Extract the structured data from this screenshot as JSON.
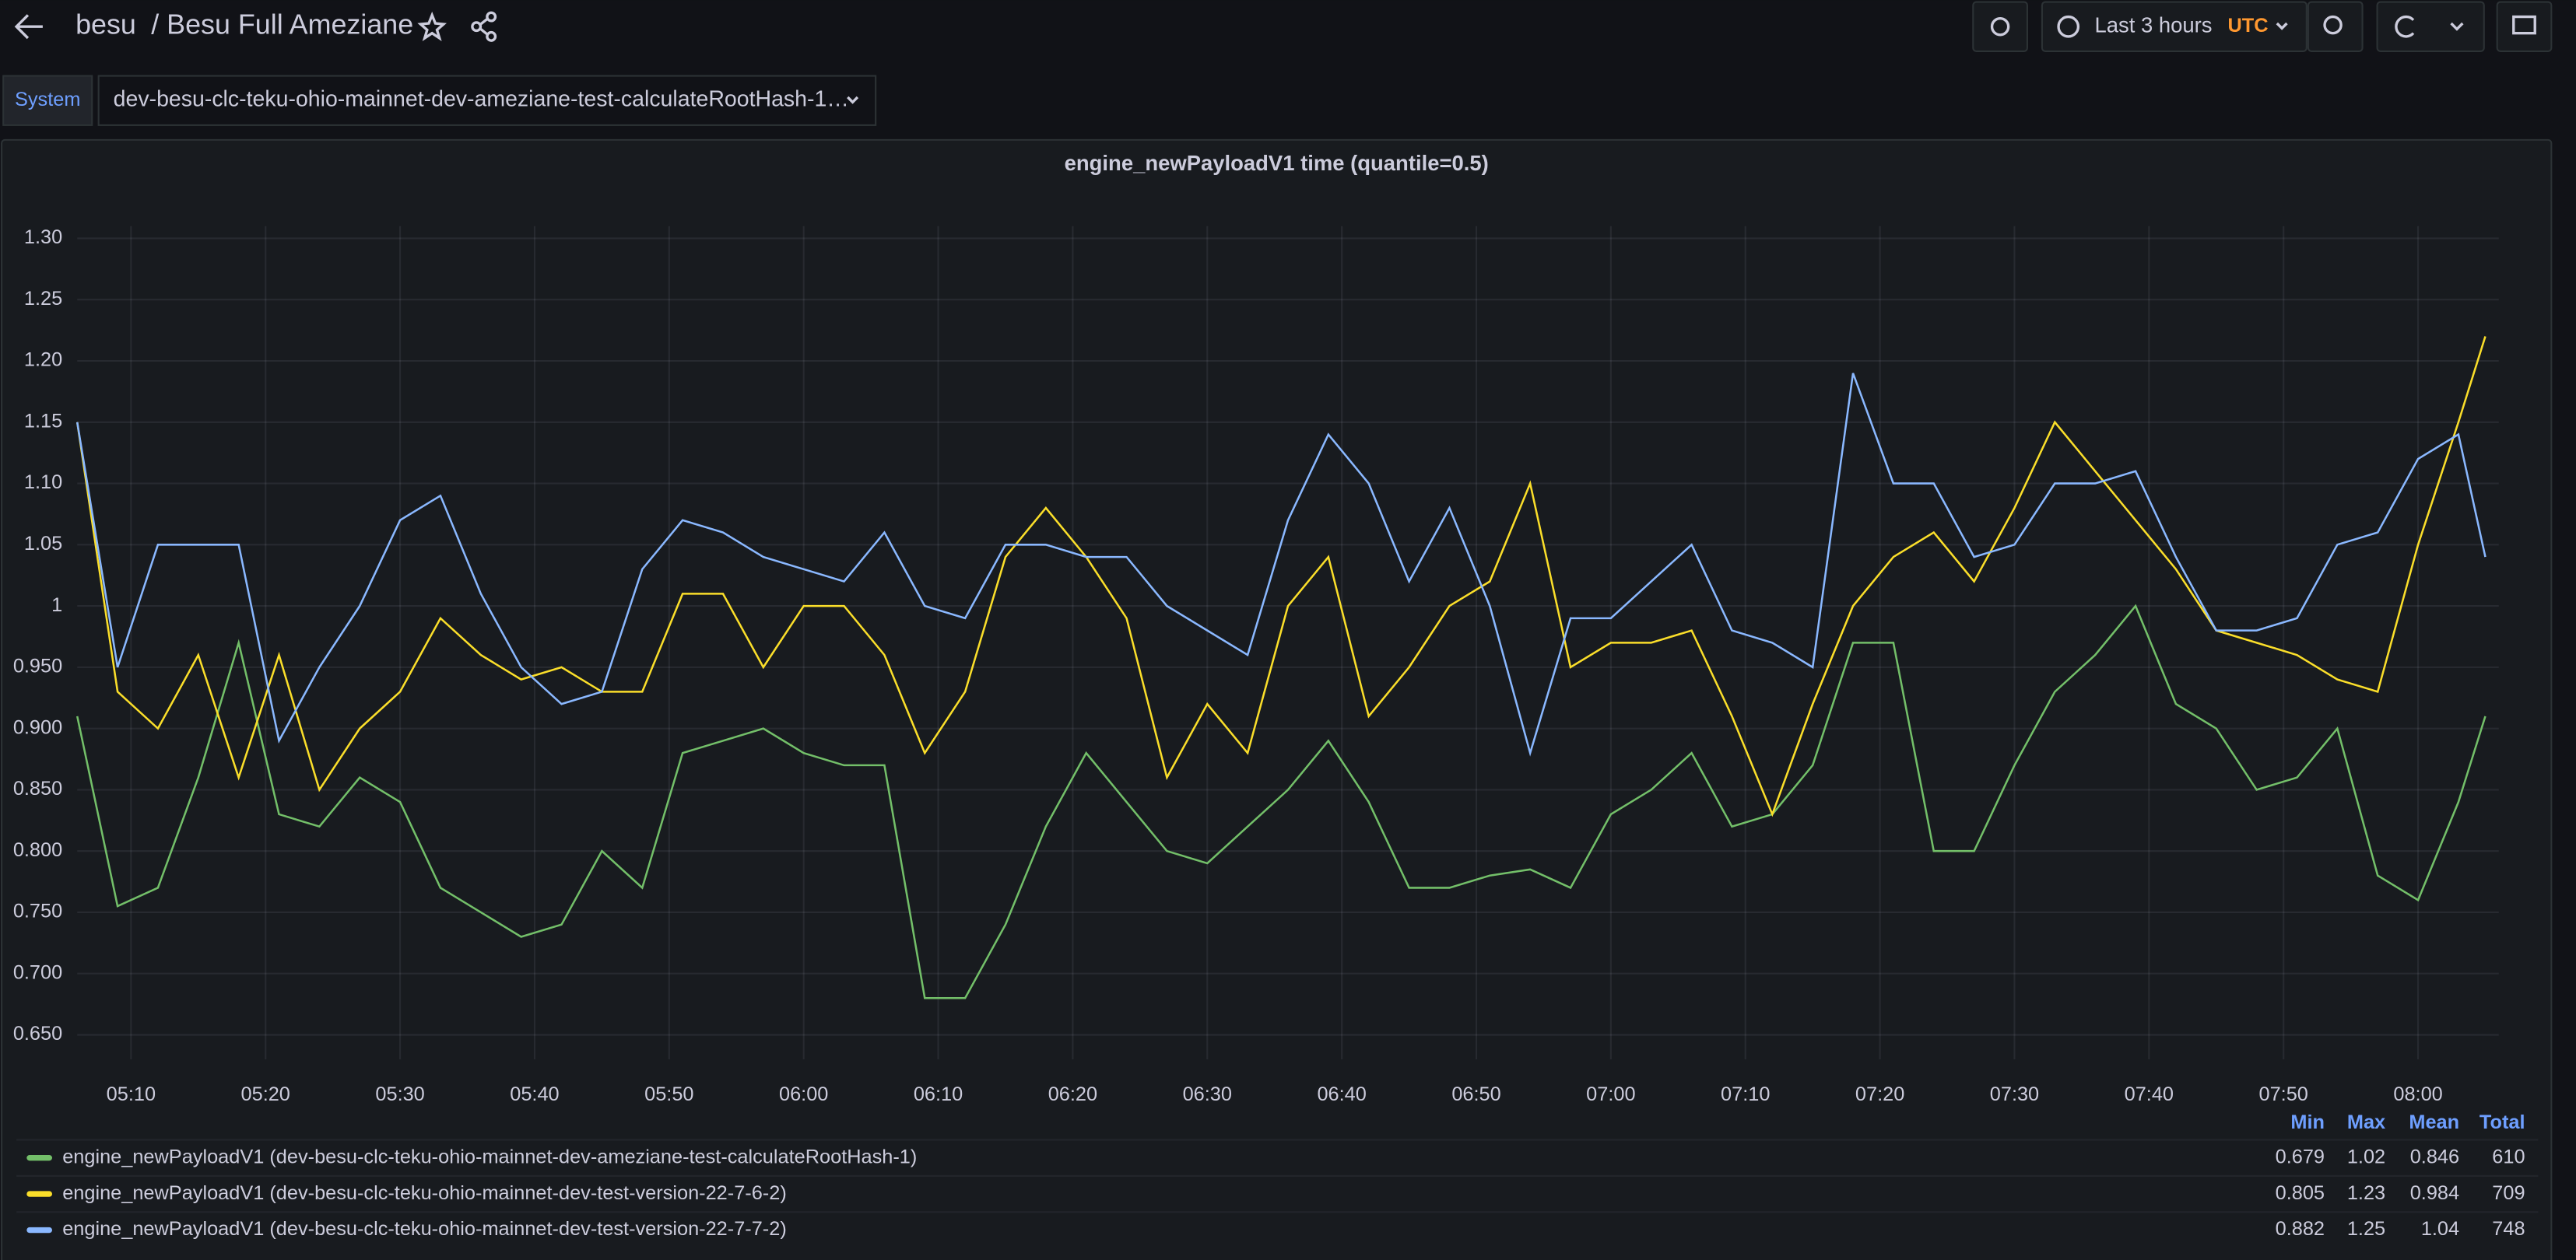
{
  "header": {
    "folder": "besu",
    "title": "/ Besu Full Ameziane",
    "time_range": "Last 3 hours",
    "timezone": "UTC"
  },
  "variables": {
    "label": "System",
    "value": "dev-besu-clc-teku-ohio-mainnet-dev-ameziane-test-calculateRootHash-1…"
  },
  "chart_data": {
    "type": "line",
    "title": "engine_newPayloadV1 time (quantile=0.5)",
    "x": [
      306,
      309,
      312,
      315,
      318,
      321,
      324,
      327,
      330,
      333,
      336,
      339,
      342,
      345,
      348,
      351,
      354,
      357,
      360,
      363,
      366,
      369,
      372,
      375,
      378,
      381,
      384,
      387,
      390,
      393,
      396,
      399,
      402,
      405,
      408,
      411,
      414,
      417,
      420,
      423,
      426,
      429,
      432,
      435,
      438,
      441,
      444,
      447,
      450,
      453,
      456,
      459,
      462,
      465,
      468,
      471,
      474,
      477,
      480,
      483,
      485
    ],
    "xlim": [
      306,
      486
    ],
    "xticks": [
      {
        "value": 310,
        "label": "05:10"
      },
      {
        "value": 320,
        "label": "05:20"
      },
      {
        "value": 330,
        "label": "05:30"
      },
      {
        "value": 340,
        "label": "05:40"
      },
      {
        "value": 350,
        "label": "05:50"
      },
      {
        "value": 360,
        "label": "06:00"
      },
      {
        "value": 370,
        "label": "06:10"
      },
      {
        "value": 380,
        "label": "06:20"
      },
      {
        "value": 390,
        "label": "06:30"
      },
      {
        "value": 400,
        "label": "06:40"
      },
      {
        "value": 410,
        "label": "06:50"
      },
      {
        "value": 420,
        "label": "07:00"
      },
      {
        "value": 430,
        "label": "07:10"
      },
      {
        "value": 440,
        "label": "07:20"
      },
      {
        "value": 450,
        "label": "07:30"
      },
      {
        "value": 460,
        "label": "07:40"
      },
      {
        "value": 470,
        "label": "07:50"
      },
      {
        "value": 480,
        "label": "08:00"
      }
    ],
    "ylim": [
      0.63,
      1.31
    ],
    "yticks": [
      {
        "value": 0.65,
        "label": "0.650"
      },
      {
        "value": 0.7,
        "label": "0.700"
      },
      {
        "value": 0.75,
        "label": "0.750"
      },
      {
        "value": 0.8,
        "label": "0.800"
      },
      {
        "value": 0.85,
        "label": "0.850"
      },
      {
        "value": 0.9,
        "label": "0.900"
      },
      {
        "value": 0.95,
        "label": "0.950"
      },
      1,
      {
        "value": 1.05,
        "label": "1.05"
      },
      {
        "value": 1.1,
        "label": "1.10"
      },
      {
        "value": 1.15,
        "label": "1.15"
      },
      {
        "value": 1.2,
        "label": "1.20"
      },
      1.25,
      {
        "value": 1.3,
        "label": "1.30"
      }
    ],
    "grid": true,
    "legend_columns": [
      "Min",
      "Max",
      "Mean",
      "Total"
    ],
    "series": [
      {
        "name": "engine_newPayloadV1 (dev-besu-clc-teku-ohio-mainnet-dev-ameziane-test-calculateRootHash-1)",
        "color": "#73bf69",
        "min": 0.679,
        "max": 1.02,
        "mean": 0.846,
        "total": 610,
        "values": [
          0.91,
          0.755,
          0.77,
          0.86,
          0.97,
          0.83,
          0.82,
          0.86,
          0.84,
          0.77,
          0.75,
          0.73,
          0.74,
          0.8,
          0.77,
          0.88,
          0.89,
          0.9,
          0.88,
          0.87,
          0.87,
          0.68,
          0.68,
          0.74,
          0.82,
          0.88,
          0.84,
          0.8,
          0.79,
          0.82,
          0.85,
          0.89,
          0.84,
          0.77,
          0.77,
          0.78,
          0.785,
          0.77,
          0.83,
          0.85,
          0.88,
          0.82,
          0.83,
          0.87,
          0.97,
          0.97,
          0.8,
          0.8,
          0.87,
          0.93,
          0.96,
          1.0,
          0.92,
          0.9,
          0.85,
          0.86,
          0.9,
          0.78,
          0.76,
          0.84,
          0.91
        ]
      },
      {
        "name": "engine_newPayloadV1 (dev-besu-clc-teku-ohio-mainnet-dev-test-version-22-7-6-2)",
        "color": "#fade2a",
        "min": 0.805,
        "max": 1.23,
        "mean": 0.984,
        "total": 709,
        "values": [
          1.15,
          0.93,
          0.9,
          0.96,
          0.86,
          0.96,
          0.85,
          0.9,
          0.93,
          0.99,
          0.96,
          0.94,
          0.95,
          0.93,
          0.93,
          1.01,
          1.01,
          0.95,
          1.0,
          1.0,
          0.96,
          0.88,
          0.93,
          1.04,
          1.08,
          1.04,
          0.99,
          0.86,
          0.92,
          0.88,
          1.0,
          1.04,
          0.91,
          0.95,
          1.0,
          1.02,
          1.1,
          0.95,
          0.97,
          0.97,
          0.98,
          0.91,
          0.83,
          0.92,
          1.0,
          1.04,
          1.06,
          1.02,
          1.08,
          1.15,
          1.11,
          1.07,
          1.03,
          0.98,
          0.97,
          0.96,
          0.94,
          0.93,
          1.05,
          1.15,
          1.22
        ]
      },
      {
        "name": "engine_newPayloadV1 (dev-besu-clc-teku-ohio-mainnet-dev-test-version-22-7-7-2)",
        "color": "#8ab8ff",
        "min": 0.882,
        "max": 1.25,
        "mean": 1.04,
        "total": 748,
        "values": [
          1.15,
          0.95,
          1.05,
          1.05,
          1.05,
          0.89,
          0.95,
          1.0,
          1.07,
          1.09,
          1.01,
          0.95,
          0.92,
          0.93,
          1.03,
          1.07,
          1.06,
          1.04,
          1.03,
          1.02,
          1.06,
          1.0,
          0.99,
          1.05,
          1.05,
          1.04,
          1.04,
          1.0,
          0.98,
          0.96,
          1.07,
          1.14,
          1.1,
          1.02,
          1.08,
          1.0,
          0.88,
          0.99,
          0.99,
          1.02,
          1.05,
          0.98,
          0.97,
          0.95,
          1.19,
          1.1,
          1.1,
          1.04,
          1.05,
          1.1,
          1.1,
          1.11,
          1.04,
          0.98,
          0.98,
          0.99,
          1.05,
          1.06,
          1.12,
          1.14,
          1.04
        ]
      }
    ]
  }
}
